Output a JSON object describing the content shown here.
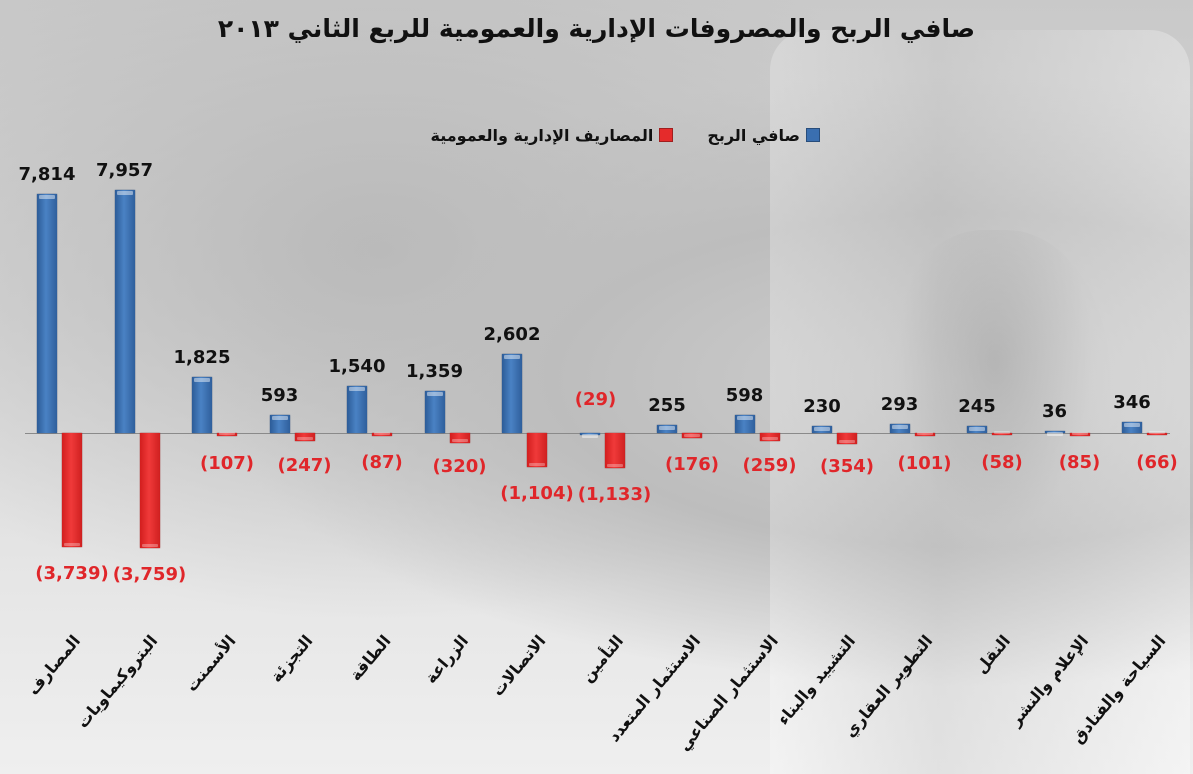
{
  "title": "صافي الربح والمصروفات الإدارية والعمومية للربع الثاني ٢٠١٣",
  "legend": {
    "net_profit": {
      "label": "صافي الربح",
      "color": "#3a6fb0"
    },
    "ga_expenses": {
      "label": "المصاريف الإدارية والعمومية",
      "color": "#e52b2b"
    }
  },
  "chart_data": {
    "type": "bar",
    "title": "صافي الربح والمصروفات الإدارية والعمومية للربع الثاني ٢٠١٣",
    "xlabel": "",
    "ylabel": "",
    "grid": false,
    "legend_position": "top",
    "categories": [
      "المصارف",
      "البتروكيماويات",
      "الأسمنت",
      "التجزئة",
      "الطاقة",
      "الزراعة",
      "الاتصالات",
      "التأمين",
      "الاستثمار المتعدد",
      "الاستثمار الصناعي",
      "التشييد والبناء",
      "التطوير العقاري",
      "النقل",
      "الإعلام والنشر",
      "السياحة والفنادق"
    ],
    "series": [
      {
        "name": "صافي الربح",
        "color": "#3a6fb0",
        "values": [
          7814,
          7957,
          1825,
          593,
          1540,
          1359,
          2602,
          -29,
          255,
          598,
          230,
          293,
          245,
          36,
          346
        ],
        "labels": [
          "7,814",
          "7,957",
          "1,825",
          "593",
          "1,540",
          "1,359",
          "2,602",
          "(29)",
          "255",
          "598",
          "230",
          "293",
          "245",
          "36",
          "346"
        ]
      },
      {
        "name": "المصاريف الإدارية والعمومية",
        "color": "#e52b2b",
        "values": [
          -3739,
          -3759,
          -107,
          -247,
          -87,
          -320,
          -1104,
          -1133,
          -176,
          -259,
          -354,
          -101,
          -58,
          -85,
          -66
        ],
        "labels": [
          "(3,739)",
          "(3,759)",
          "(107)",
          "(247)",
          "(87)",
          "(320)",
          "(1,104)",
          "(1,133)",
          "(176)",
          "(259)",
          "(354)",
          "(101)",
          "(58)",
          "(85)",
          "(66)"
        ]
      }
    ],
    "ylim": [
      -4000,
      8000
    ]
  }
}
